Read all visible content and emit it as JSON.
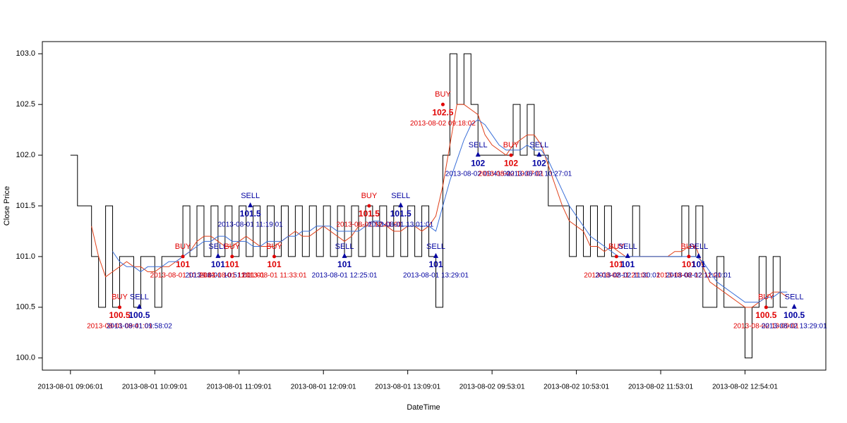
{
  "chart_data": {
    "type": "line",
    "x_label": "DateTime",
    "y_label": "Close Price",
    "xlim": [
      -4,
      107.5
    ],
    "ylim": [
      99.88,
      103.12
    ],
    "xticks": [
      {
        "value": 0,
        "label": "2013-08-01 09:06:01"
      },
      {
        "value": 12,
        "label": "2013-08-01 10:09:01"
      },
      {
        "value": 24,
        "label": "2013-08-01 11:09:01"
      },
      {
        "value": 36,
        "label": "2013-08-01 12:09:01"
      },
      {
        "value": 48,
        "label": "2013-08-01 13:09:01"
      },
      {
        "value": 60,
        "label": "2013-08-02 09:53:01"
      },
      {
        "value": 72,
        "label": "2013-08-02 10:53:01"
      },
      {
        "value": 84,
        "label": "2013-08-02 11:53:01"
      },
      {
        "value": 96,
        "label": "2013-08-02 12:54:01"
      }
    ],
    "yticks": [
      {
        "value": 100,
        "label": "100.0"
      },
      {
        "value": 100.5,
        "label": "100.5"
      },
      {
        "value": 101,
        "label": "101.0"
      },
      {
        "value": 101.5,
        "label": "101.5"
      },
      {
        "value": 102,
        "label": "102.0"
      },
      {
        "value": 102.5,
        "label": "102.5"
      },
      {
        "value": 103,
        "label": "103.0"
      }
    ],
    "series": [
      {
        "color": "#000000",
        "step": true,
        "values": [
          102.0,
          101.5,
          101.5,
          101.0,
          100.5,
          101.5,
          100.5,
          101.0,
          101.0,
          100.5,
          101.0,
          101.0,
          100.5,
          101.0,
          101.0,
          101.0,
          101.5,
          101.0,
          101.5,
          101.0,
          101.5,
          101.0,
          101.5,
          101.0,
          101.5,
          101.0,
          101.5,
          101.0,
          101.5,
          101.0,
          101.5,
          101.0,
          101.5,
          101.0,
          101.5,
          101.0,
          101.5,
          101.0,
          101.5,
          101.0,
          101.5,
          101.0,
          101.5,
          101.0,
          101.5,
          101.0,
          101.5,
          101.0,
          101.5,
          101.0,
          101.5,
          101.0,
          100.5,
          102.0,
          103.0,
          102.5,
          103.0,
          102.5,
          102.0,
          102.0,
          102.0,
          102.0,
          102.0,
          102.5,
          102.0,
          102.5,
          102.0,
          102.0,
          101.5,
          101.5,
          101.5,
          101.0,
          101.5,
          101.0,
          101.5,
          101.0,
          101.5,
          101.0,
          101.0,
          101.0,
          101.5,
          101.0,
          101.0,
          101.0,
          101.0,
          101.0,
          101.0,
          101.5,
          101.0,
          101.5,
          100.5,
          100.5,
          101.0,
          100.5,
          100.5,
          100.5,
          100.0,
          100.5,
          101.0,
          100.5,
          101.0,
          100.5,
          100.5
        ]
      },
      {
        "color": "#e0401a",
        "step": false,
        "values": [
          null,
          null,
          null,
          101.3,
          101.0,
          100.8,
          100.85,
          100.9,
          100.95,
          100.9,
          100.9,
          100.85,
          100.85,
          100.9,
          100.9,
          100.95,
          101.0,
          101.05,
          101.15,
          101.2,
          101.2,
          101.15,
          101.1,
          101.1,
          101.15,
          101.2,
          101.15,
          101.1,
          101.1,
          101.1,
          101.15,
          101.2,
          101.25,
          101.2,
          101.2,
          101.25,
          101.3,
          101.25,
          101.2,
          101.15,
          101.2,
          101.3,
          101.3,
          101.35,
          101.3,
          101.3,
          101.25,
          101.25,
          101.3,
          101.3,
          101.25,
          101.3,
          101.4,
          101.7,
          102.1,
          102.5,
          102.5,
          102.45,
          102.4,
          102.2,
          102.1,
          102.05,
          102.0,
          102.1,
          102.15,
          102.2,
          102.2,
          102.1,
          101.9,
          101.7,
          101.5,
          101.35,
          101.3,
          101.25,
          101.1,
          101.1,
          101.05,
          101.1,
          101.05,
          101.0,
          101.0,
          101.0,
          101.0,
          101.0,
          101.0,
          101.0,
          101.05,
          101.05,
          101.1,
          101.1,
          100.9,
          100.75,
          100.7,
          100.65,
          100.6,
          100.55,
          100.5,
          100.5,
          100.55,
          100.6,
          100.65,
          100.65,
          100.6
        ]
      },
      {
        "color": "#3a6fd8",
        "step": false,
        "values": [
          null,
          null,
          null,
          null,
          null,
          null,
          101.05,
          100.95,
          100.9,
          100.9,
          100.85,
          100.9,
          100.9,
          100.9,
          100.95,
          100.95,
          101.0,
          101.05,
          101.1,
          101.15,
          101.15,
          101.2,
          101.2,
          101.15,
          101.15,
          101.15,
          101.1,
          101.1,
          101.15,
          101.15,
          101.15,
          101.2,
          101.2,
          101.25,
          101.25,
          101.3,
          101.3,
          101.3,
          101.25,
          101.25,
          101.25,
          101.25,
          101.3,
          101.35,
          101.35,
          101.3,
          101.3,
          101.3,
          101.3,
          101.3,
          101.3,
          101.3,
          101.25,
          101.5,
          101.75,
          101.95,
          102.15,
          102.3,
          102.35,
          102.3,
          102.2,
          102.1,
          102.05,
          102.05,
          102.05,
          102.1,
          102.05,
          102.05,
          101.95,
          101.8,
          101.65,
          101.5,
          101.4,
          101.3,
          101.2,
          101.15,
          101.1,
          101.05,
          101.0,
          101.0,
          101.0,
          101.0,
          101.0,
          101.0,
          101.0,
          101.0,
          101.0,
          101.0,
          101.0,
          101.0,
          100.95,
          100.85,
          100.75,
          100.7,
          100.65,
          100.6,
          100.55,
          100.55,
          100.55,
          100.6,
          100.6,
          100.65,
          100.65
        ]
      }
    ],
    "signal_colors": {
      "BUY": "#e00000",
      "SELL": "#0000a0"
    },
    "signals": [
      {
        "type": "BUY",
        "x": 7,
        "price": 100.5,
        "time": "2013-08-01 09:41:01"
      },
      {
        "type": "SELL",
        "x": 9.8,
        "price": 100.5,
        "time": "2013-08-01 09:58:02"
      },
      {
        "type": "BUY",
        "x": 16,
        "price": 101,
        "time": "2013-08-01 10:29:01"
      },
      {
        "type": "SELL",
        "x": 21,
        "price": 101,
        "time": "2013-08-01 10:51:01"
      },
      {
        "type": "BUY",
        "x": 23,
        "price": 101,
        "time": "2013-08-01 11:01:01"
      },
      {
        "type": "SELL",
        "x": 25.6,
        "price": 101.5,
        "time": "2013-08-01 11:19:01"
      },
      {
        "type": "BUY",
        "x": 29,
        "price": 101,
        "time": "2013-08-01 11:33:01"
      },
      {
        "type": "SELL",
        "x": 39,
        "price": 101,
        "time": "2013-08-01 12:25:01"
      },
      {
        "type": "BUY",
        "x": 42.5,
        "price": 101.5,
        "time": "2013-08-01 12:41:01"
      },
      {
        "type": "SELL",
        "x": 47,
        "price": 101.5,
        "time": "2013-08-01 13:01:01"
      },
      {
        "type": "SELL",
        "x": 52,
        "price": 101,
        "time": "2013-08-01 13:29:01"
      },
      {
        "type": "BUY",
        "x": 53,
        "price": 102.5,
        "time": "2013-08-02 09:18:02"
      },
      {
        "type": "SELL",
        "x": 58,
        "price": 102,
        "time": "2013-08-02 09:41:01"
      },
      {
        "type": "BUY",
        "x": 62.7,
        "price": 102,
        "time": "2013-08-02 10:07:01"
      },
      {
        "type": "SELL",
        "x": 66.7,
        "price": 102,
        "time": "2013-08-02 10:27:01"
      },
      {
        "type": "BUY",
        "x": 77.7,
        "price": 101,
        "time": "2013-08-02 11:21:01"
      },
      {
        "type": "SELL",
        "x": 79.3,
        "price": 101,
        "time": "2013-08-02 11:30:01"
      },
      {
        "type": "BUY",
        "x": 88,
        "price": 101,
        "time": "2013-08-02 12:11:01"
      },
      {
        "type": "SELL",
        "x": 89.4,
        "price": 101,
        "time": "2013-08-02 12:20:01"
      },
      {
        "type": "BUY",
        "x": 99,
        "price": 100.5,
        "time": "2013-08-02 13:09:01"
      },
      {
        "type": "SELL",
        "x": 103,
        "price": 100.5,
        "time": "2013-08-02 13:29:01"
      }
    ]
  }
}
